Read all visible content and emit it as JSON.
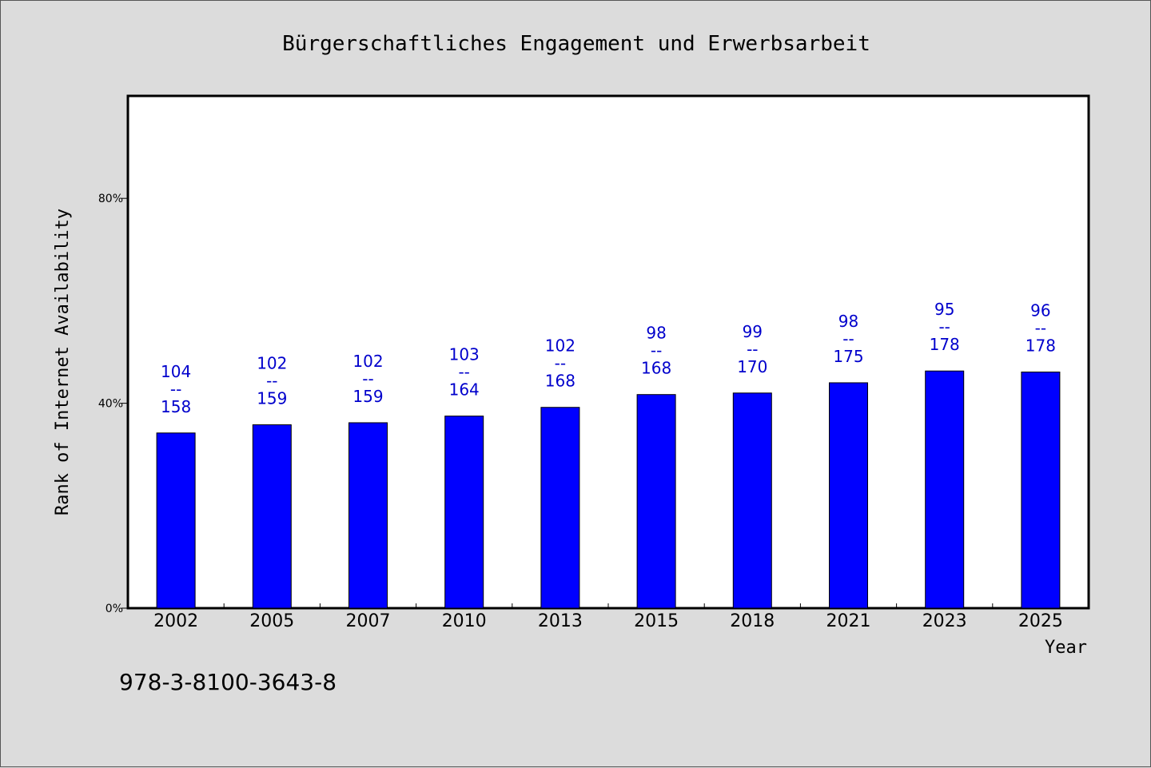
{
  "chart_data": {
    "type": "bar",
    "title": "Bürgerschaftliches Engagement und Erwerbsarbeit",
    "xlabel": "Year",
    "ylabel": "Rank of Internet Availability",
    "categories": [
      "2002",
      "2005",
      "2007",
      "2010",
      "2013",
      "2015",
      "2018",
      "2021",
      "2023",
      "2025"
    ],
    "values": [
      0.342,
      0.358,
      0.362,
      0.375,
      0.392,
      0.417,
      0.42,
      0.44,
      0.463,
      0.461
    ],
    "rank_labels": [
      {
        "top": "104",
        "sep": "--",
        "bottom": "158"
      },
      {
        "top": "102",
        "sep": "--",
        "bottom": "159"
      },
      {
        "top": "102",
        "sep": "--",
        "bottom": "159"
      },
      {
        "top": "103",
        "sep": "--",
        "bottom": "164"
      },
      {
        "top": "102",
        "sep": "--",
        "bottom": "168"
      },
      {
        "top": "98",
        "sep": "--",
        "bottom": "168"
      },
      {
        "top": "99",
        "sep": "--",
        "bottom": "170"
      },
      {
        "top": "98",
        "sep": "--",
        "bottom": "175"
      },
      {
        "top": "95",
        "sep": "--",
        "bottom": "178"
      },
      {
        "top": "96",
        "sep": "--",
        "bottom": "178"
      }
    ],
    "yticks": [
      {
        "value": 0,
        "label": "0%"
      },
      {
        "value": 0.4,
        "label": "40%"
      },
      {
        "value": 0.8,
        "label": "80%"
      }
    ],
    "ylim": [
      0,
      1
    ],
    "grid": false,
    "legend": "none",
    "bar_color": "#0000ff",
    "label_color": "#0000cc",
    "plot_background": "#ffffff",
    "page_background": "#dcdcdc"
  },
  "note": "978-3-8100-3643-8"
}
